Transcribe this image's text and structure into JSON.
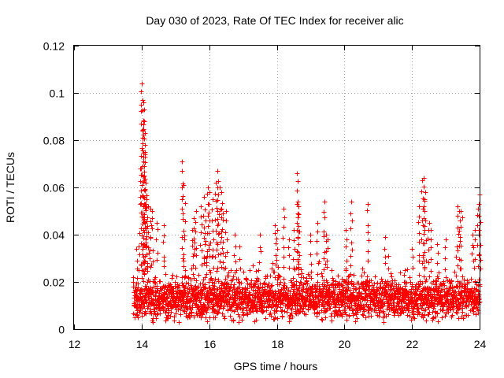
{
  "chart_data": {
    "type": "scatter",
    "title": "Day 030 of 2023, Rate Of TEC Index for receiver alic",
    "xlabel": "GPS time / hours",
    "ylabel": "ROTI / TECUs",
    "xlim": [
      12,
      24
    ],
    "ylim": [
      0,
      0.12
    ],
    "x_ticks": [
      "12",
      "14",
      "16",
      "18",
      "20",
      "22",
      "24"
    ],
    "y_ticks": [
      "0",
      "0.02",
      "0.04",
      "0.06",
      "0.08",
      "0.1",
      "0.12"
    ],
    "grid": true,
    "marker": "+",
    "color": "#ff0000",
    "series": [
      {
        "name": "alic",
        "x": [
          13.75,
          13.85,
          13.95,
          14.0,
          14.02,
          14.05,
          14.08,
          14.1,
          14.12,
          14.15,
          14.2,
          14.25,
          14.3,
          14.45,
          14.65,
          15.2,
          15.25,
          15.5,
          15.55,
          15.6,
          15.75,
          15.85,
          15.9,
          15.95,
          16.0,
          16.1,
          16.2,
          16.25,
          16.3,
          16.35,
          16.4,
          16.5,
          16.75,
          16.9,
          17.5,
          17.95,
          18.0,
          18.2,
          18.35,
          18.5,
          18.6,
          18.62,
          18.65,
          19.0,
          19.2,
          19.4,
          19.45,
          19.5,
          20.05,
          20.2,
          20.7,
          21.2,
          21.3,
          22.0,
          22.2,
          22.3,
          22.35,
          22.4,
          22.5,
          22.55,
          22.75,
          23.0,
          23.35,
          23.4,
          23.45,
          23.8,
          23.85,
          23.95,
          24.0
        ],
        "y": [
          0.022,
          0.034,
          0.068,
          0.104,
          0.097,
          0.096,
          0.088,
          0.078,
          0.062,
          0.055,
          0.052,
          0.051,
          0.05,
          0.045,
          0.044,
          0.071,
          0.061,
          0.042,
          0.047,
          0.05,
          0.052,
          0.056,
          0.046,
          0.06,
          0.058,
          0.055,
          0.062,
          0.067,
          0.06,
          0.058,
          0.049,
          0.05,
          0.04,
          0.035,
          0.04,
          0.044,
          0.042,
          0.051,
          0.038,
          0.042,
          0.066,
          0.054,
          0.052,
          0.04,
          0.045,
          0.054,
          0.04,
          0.038,
          0.042,
          0.054,
          0.053,
          0.039,
          0.031,
          0.034,
          0.052,
          0.063,
          0.064,
          0.058,
          0.045,
          0.042,
          0.036,
          0.038,
          0.052,
          0.05,
          0.05,
          0.04,
          0.042,
          0.051,
          0.057
        ]
      }
    ],
    "dense_band": {
      "x_start": 13.75,
      "x_end": 24.0,
      "y_low": 0.005,
      "y_high": 0.025,
      "typical": 0.013
    }
  }
}
